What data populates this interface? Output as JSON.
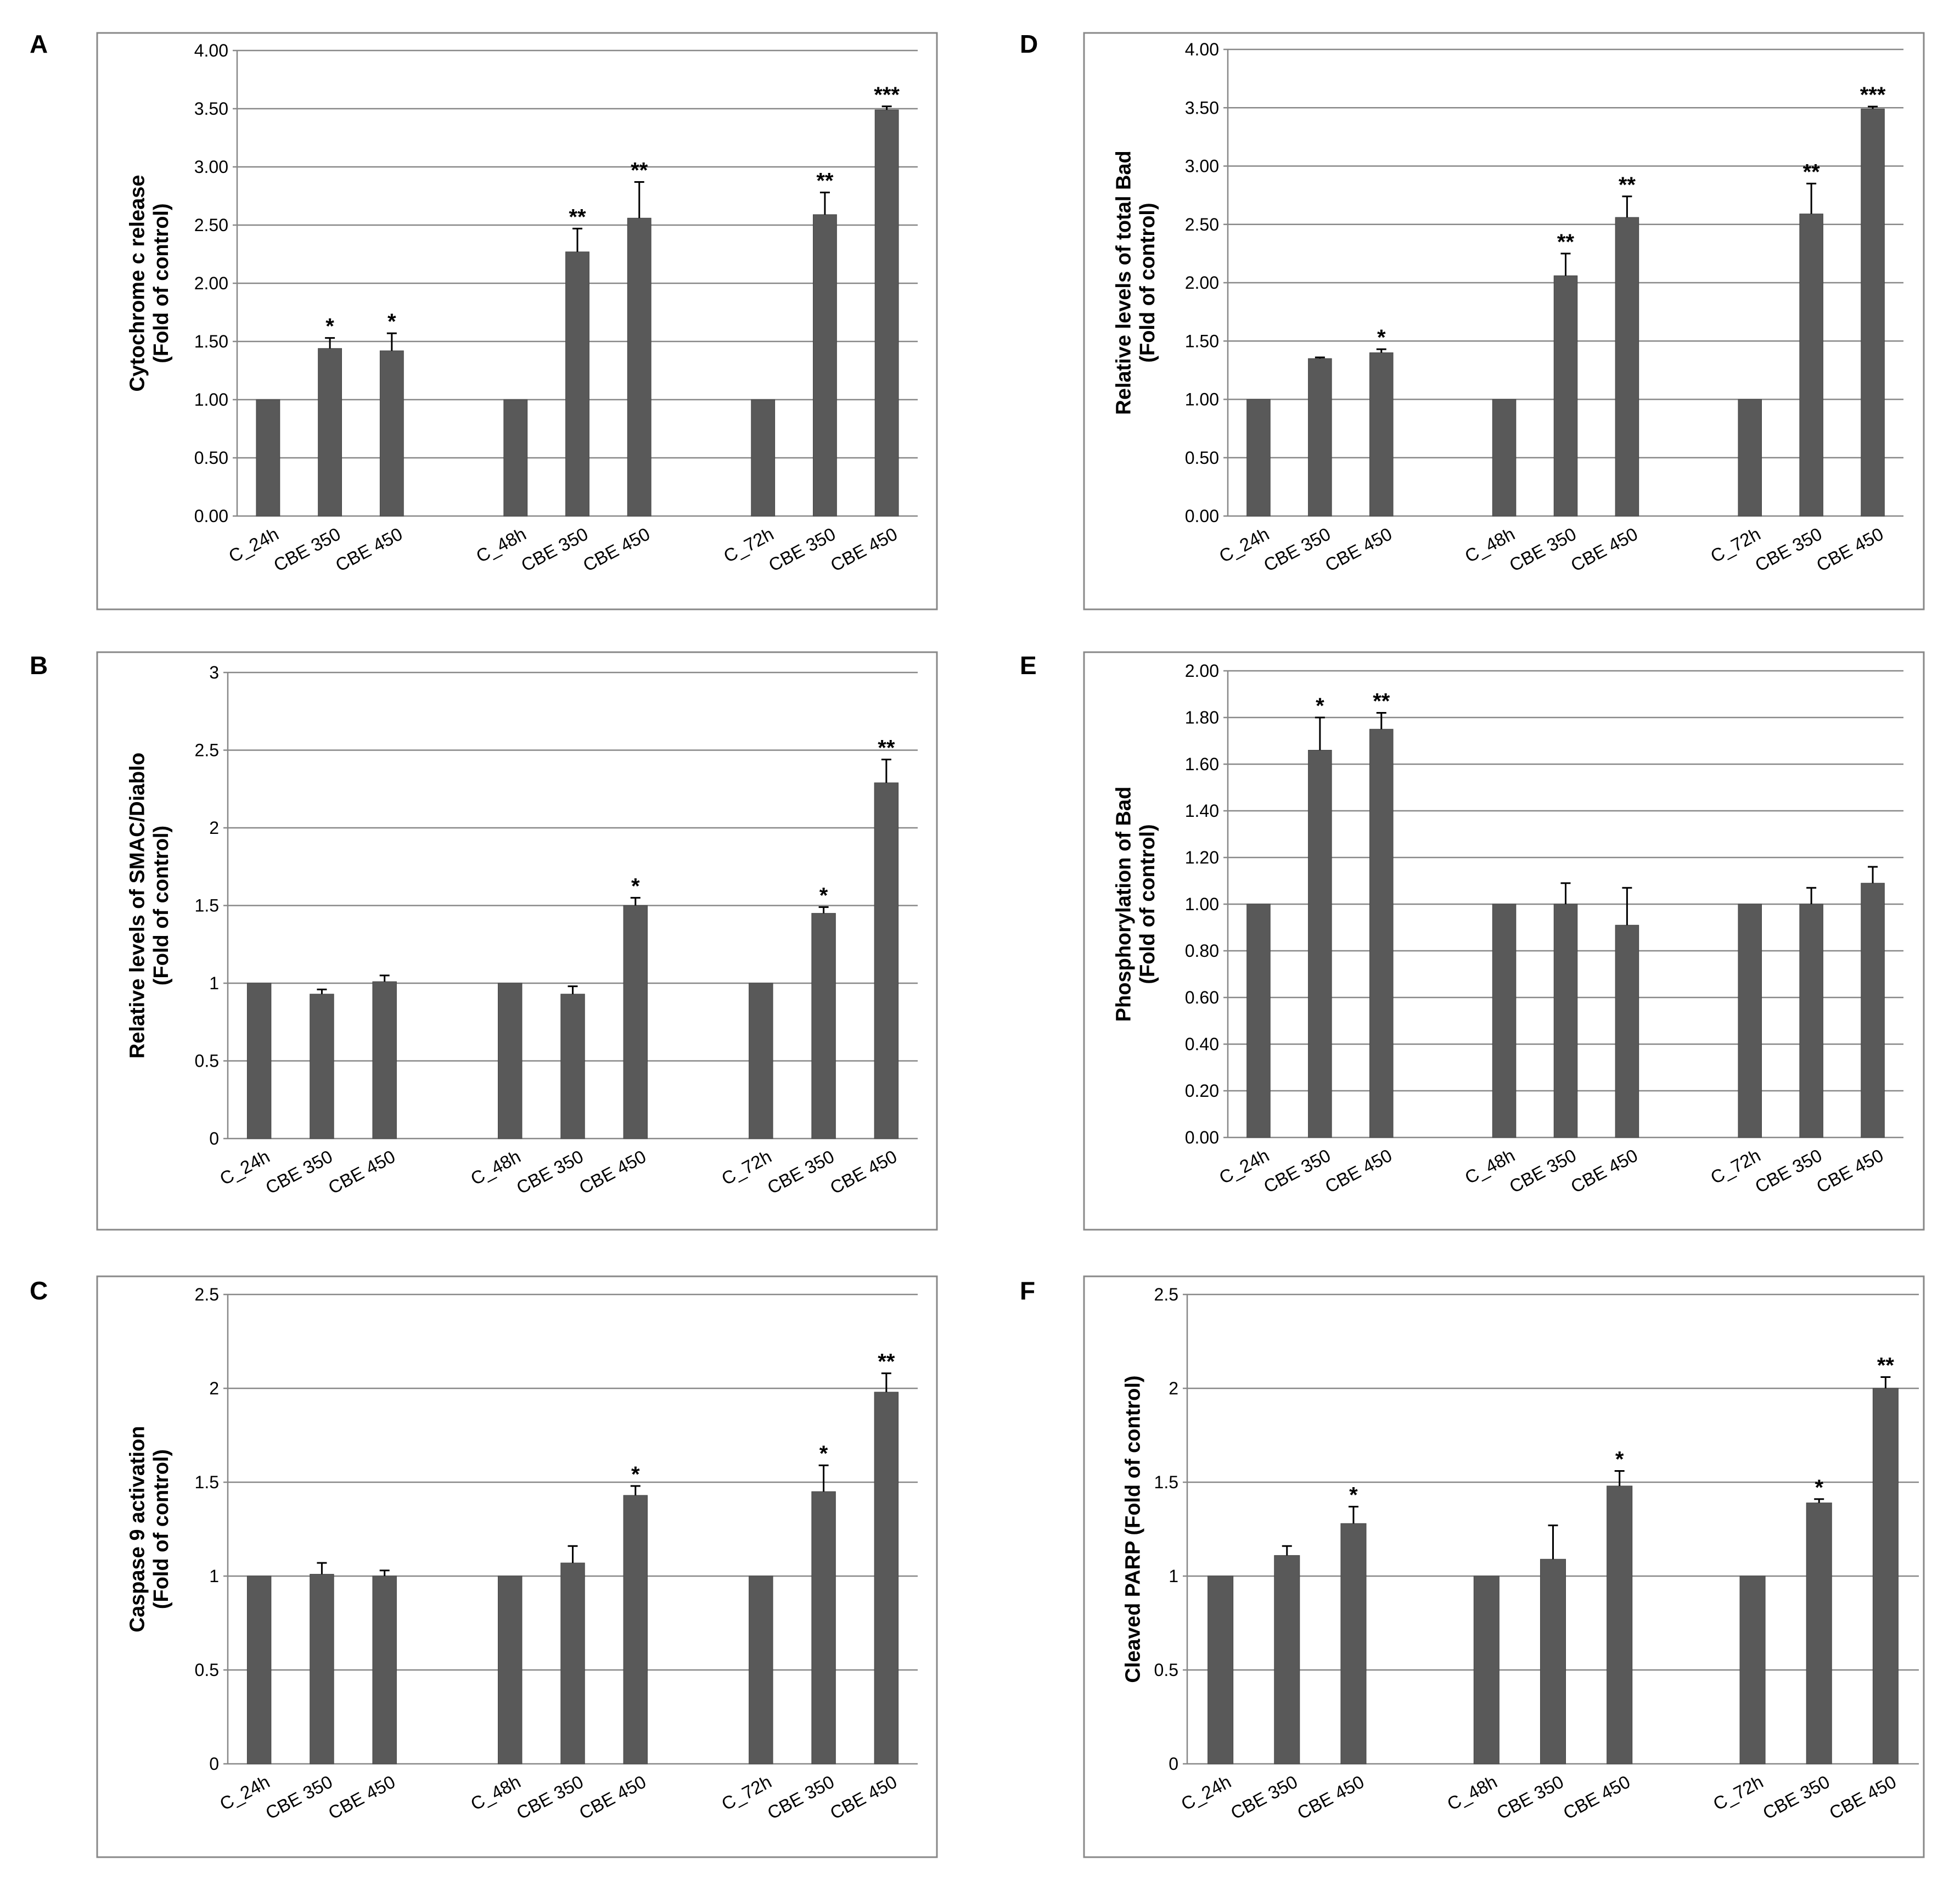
{
  "figure": {
    "categories": [
      "C_24h",
      "CBE 350",
      "CBE 450",
      "C_48h",
      "CBE 350",
      "CBE 450",
      "C_72h",
      "CBE 350",
      "CBE 450"
    ],
    "bar_color": "#595959",
    "grid_color": "#888888"
  },
  "chart_data": [
    {
      "id": "A",
      "type": "bar",
      "ylabel_line1": "Cytochrome c release",
      "ylabel_line2": "(Fold of control)",
      "ylim": [
        0,
        4
      ],
      "yticks": [
        "0.00",
        "0.50",
        "1.00",
        "1.50",
        "2.00",
        "2.50",
        "3.00",
        "3.50",
        "4.00"
      ],
      "values": [
        1.0,
        1.44,
        1.42,
        1.0,
        2.27,
        2.56,
        1.0,
        2.59,
        3.49
      ],
      "errors": [
        0,
        0.09,
        0.15,
        0,
        0.2,
        0.31,
        0,
        0.19,
        0.03
      ],
      "significance": [
        "",
        "*",
        "*",
        "",
        "**",
        "**",
        "",
        "**",
        "***"
      ]
    },
    {
      "id": "B",
      "type": "bar",
      "ylabel_line1": "Relative levels of SMAC/Diablo",
      "ylabel_line2": "(Fold of control)",
      "ylim": [
        0,
        3
      ],
      "yticks": [
        "0",
        "0.5",
        "1",
        "1.5",
        "2",
        "2.5",
        "3"
      ],
      "values": [
        1.0,
        0.93,
        1.01,
        1.0,
        0.93,
        1.5,
        1.0,
        1.45,
        2.29
      ],
      "errors": [
        0,
        0.03,
        0.04,
        0,
        0.05,
        0.05,
        0,
        0.04,
        0.15
      ],
      "significance": [
        "",
        "",
        "",
        "",
        "",
        "*",
        "",
        "*",
        "**"
      ]
    },
    {
      "id": "C",
      "type": "bar",
      "ylabel_line1": "Caspase 9 activation",
      "ylabel_line2": "(Fold of control)",
      "ylim": [
        0,
        2.5
      ],
      "yticks": [
        "0",
        "0.5",
        "1",
        "1.5",
        "2",
        "2.5"
      ],
      "values": [
        1.0,
        1.01,
        1.0,
        1.0,
        1.07,
        1.43,
        1.0,
        1.45,
        1.98
      ],
      "errors": [
        0,
        0.06,
        0.03,
        0,
        0.09,
        0.05,
        0,
        0.14,
        0.1
      ],
      "significance": [
        "",
        "",
        "",
        "",
        "",
        "*",
        "",
        "*",
        "**"
      ]
    },
    {
      "id": "D",
      "type": "bar",
      "ylabel_line1": "Relative levels of  total Bad",
      "ylabel_line2": "(Fold of control)",
      "ylim": [
        0,
        4
      ],
      "yticks": [
        "0.00",
        "0.50",
        "1.00",
        "1.50",
        "2.00",
        "2.50",
        "3.00",
        "3.50",
        "4.00"
      ],
      "values": [
        1.0,
        1.35,
        1.4,
        1.0,
        2.06,
        2.56,
        1.0,
        2.59,
        3.49
      ],
      "errors": [
        0,
        0.01,
        0.03,
        0,
        0.19,
        0.18,
        0,
        0.26,
        0.02
      ],
      "significance": [
        "",
        "",
        "*",
        "",
        "**",
        "**",
        "",
        "**",
        "***"
      ]
    },
    {
      "id": "E",
      "type": "bar",
      "ylabel_line1": "Phosphorylation of Bad",
      "ylabel_line2": "(Fold of control)",
      "ylim": [
        0,
        2
      ],
      "yticks": [
        "0.00",
        "0.20",
        "0.40",
        "0.60",
        "0.80",
        "1.00",
        "1.20",
        "1.40",
        "1.60",
        "1.80",
        "2.00"
      ],
      "values": [
        1.0,
        1.66,
        1.75,
        1.0,
        1.0,
        0.91,
        1.0,
        1.0,
        1.09
      ],
      "errors": [
        0,
        0.14,
        0.07,
        0,
        0.09,
        0.16,
        0,
        0.07,
        0.07
      ],
      "significance": [
        "",
        "*",
        "**",
        "",
        "",
        "",
        "",
        "",
        ""
      ]
    },
    {
      "id": "F",
      "type": "bar",
      "ylabel_line1": "Cleaved PARP (Fold of control)",
      "ylabel_line2": "",
      "ylim": [
        0,
        2.5
      ],
      "yticks": [
        "0",
        "0.5",
        "1",
        "1.5",
        "2",
        "2.5"
      ],
      "values": [
        1.0,
        1.11,
        1.28,
        1.0,
        1.09,
        1.48,
        1.0,
        1.39,
        2.0
      ],
      "errors": [
        0,
        0.05,
        0.09,
        0,
        0.18,
        0.08,
        0,
        0.02,
        0.06
      ],
      "significance": [
        "",
        "",
        "*",
        "",
        "",
        "*",
        "",
        "*",
        "**"
      ]
    }
  ]
}
